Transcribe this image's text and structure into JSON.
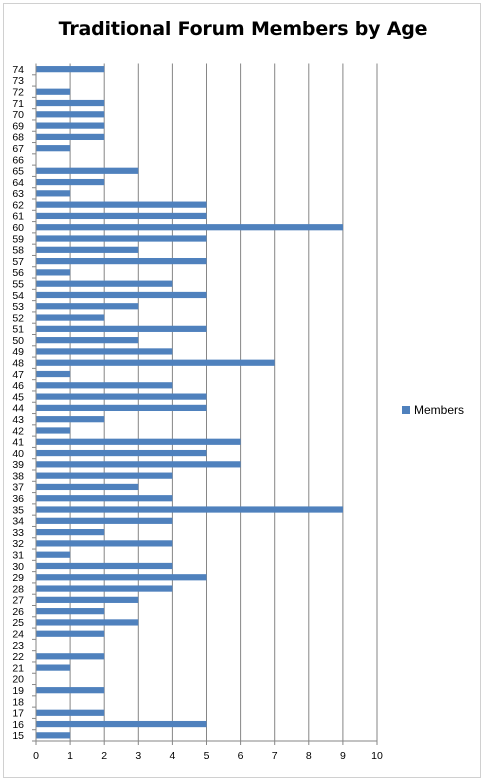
{
  "chart_data": {
    "type": "bar",
    "orientation": "horizontal",
    "title": "Traditional Forum Members by Age",
    "xlabel": "",
    "ylabel": "",
    "xlim": [
      0,
      10
    ],
    "x_ticks": [
      0,
      1,
      2,
      3,
      4,
      5,
      6,
      7,
      8,
      9,
      10
    ],
    "grid": "vertical major gridlines",
    "legend_position": "right",
    "series_color": "#4F81BD",
    "categories": [
      "15",
      "16",
      "17",
      "18",
      "19",
      "20",
      "21",
      "22",
      "23",
      "24",
      "25",
      "26",
      "27",
      "28",
      "29",
      "30",
      "31",
      "32",
      "33",
      "34",
      "35",
      "36",
      "37",
      "38",
      "39",
      "40",
      "41",
      "42",
      "43",
      "44",
      "45",
      "46",
      "47",
      "48",
      "49",
      "50",
      "51",
      "52",
      "53",
      "54",
      "55",
      "56",
      "57",
      "58",
      "59",
      "60",
      "61",
      "62",
      "63",
      "64",
      "65",
      "66",
      "67",
      "68",
      "69",
      "70",
      "71",
      "72",
      "73",
      "74"
    ],
    "series": [
      {
        "name": "Members",
        "values": [
          1,
          5,
          2,
          0,
          2,
          0,
          1,
          2,
          0,
          2,
          3,
          2,
          3,
          4,
          5,
          4,
          1,
          4,
          2,
          4,
          9,
          4,
          3,
          4,
          6,
          5,
          6,
          1,
          2,
          5,
          5,
          4,
          1,
          7,
          4,
          3,
          5,
          2,
          3,
          5,
          4,
          1,
          5,
          3,
          5,
          9,
          5,
          5,
          1,
          2,
          3,
          0,
          1,
          2,
          2,
          2,
          2,
          1,
          0,
          2
        ]
      }
    ]
  }
}
